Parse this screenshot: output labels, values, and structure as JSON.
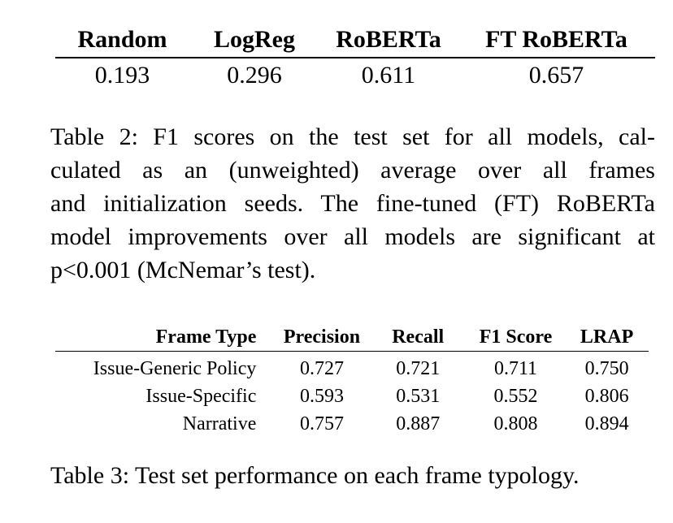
{
  "table2": {
    "headers": [
      "Random",
      "LogReg",
      "RoBERTa",
      "FT RoBERTa"
    ],
    "values": [
      "0.193",
      "0.296",
      "0.611",
      "0.657"
    ]
  },
  "caption2": {
    "lines": [
      "Table 2: F1 scores on the test set for all models, cal-",
      "culated as an (unweighted) average over all frames",
      "and initialization seeds. The fine-tuned (FT) RoBERTa",
      "model improvements over all models are significant at",
      "p<0.001 (McNemar’s test)."
    ]
  },
  "table3": {
    "headers": [
      "Frame Type",
      "Precision",
      "Recall",
      "F1 Score",
      "LRAP"
    ],
    "rows": [
      [
        "Issue-Generic Policy",
        "0.727",
        "0.721",
        "0.711",
        "0.750"
      ],
      [
        "Issue-Specific",
        "0.593",
        "0.531",
        "0.552",
        "0.806"
      ],
      [
        "Narrative",
        "0.757",
        "0.887",
        "0.808",
        "0.894"
      ]
    ]
  },
  "caption3": "Table 3: Test set performance on each frame typology."
}
